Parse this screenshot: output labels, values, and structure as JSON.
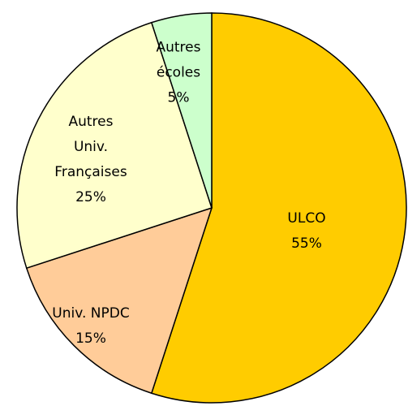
{
  "chart_data": {
    "type": "pie",
    "categories": [
      "ULCO",
      "Univ. NPDC",
      "Autres Univ. Françaises",
      "Autres écoles"
    ],
    "values": [
      55,
      15,
      25,
      5
    ],
    "value_labels": [
      "55%",
      "15%",
      "25%",
      "5%"
    ],
    "colors": [
      "#ffcc00",
      "#ffcc99",
      "#ffffcc",
      "#ccffcc"
    ]
  }
}
